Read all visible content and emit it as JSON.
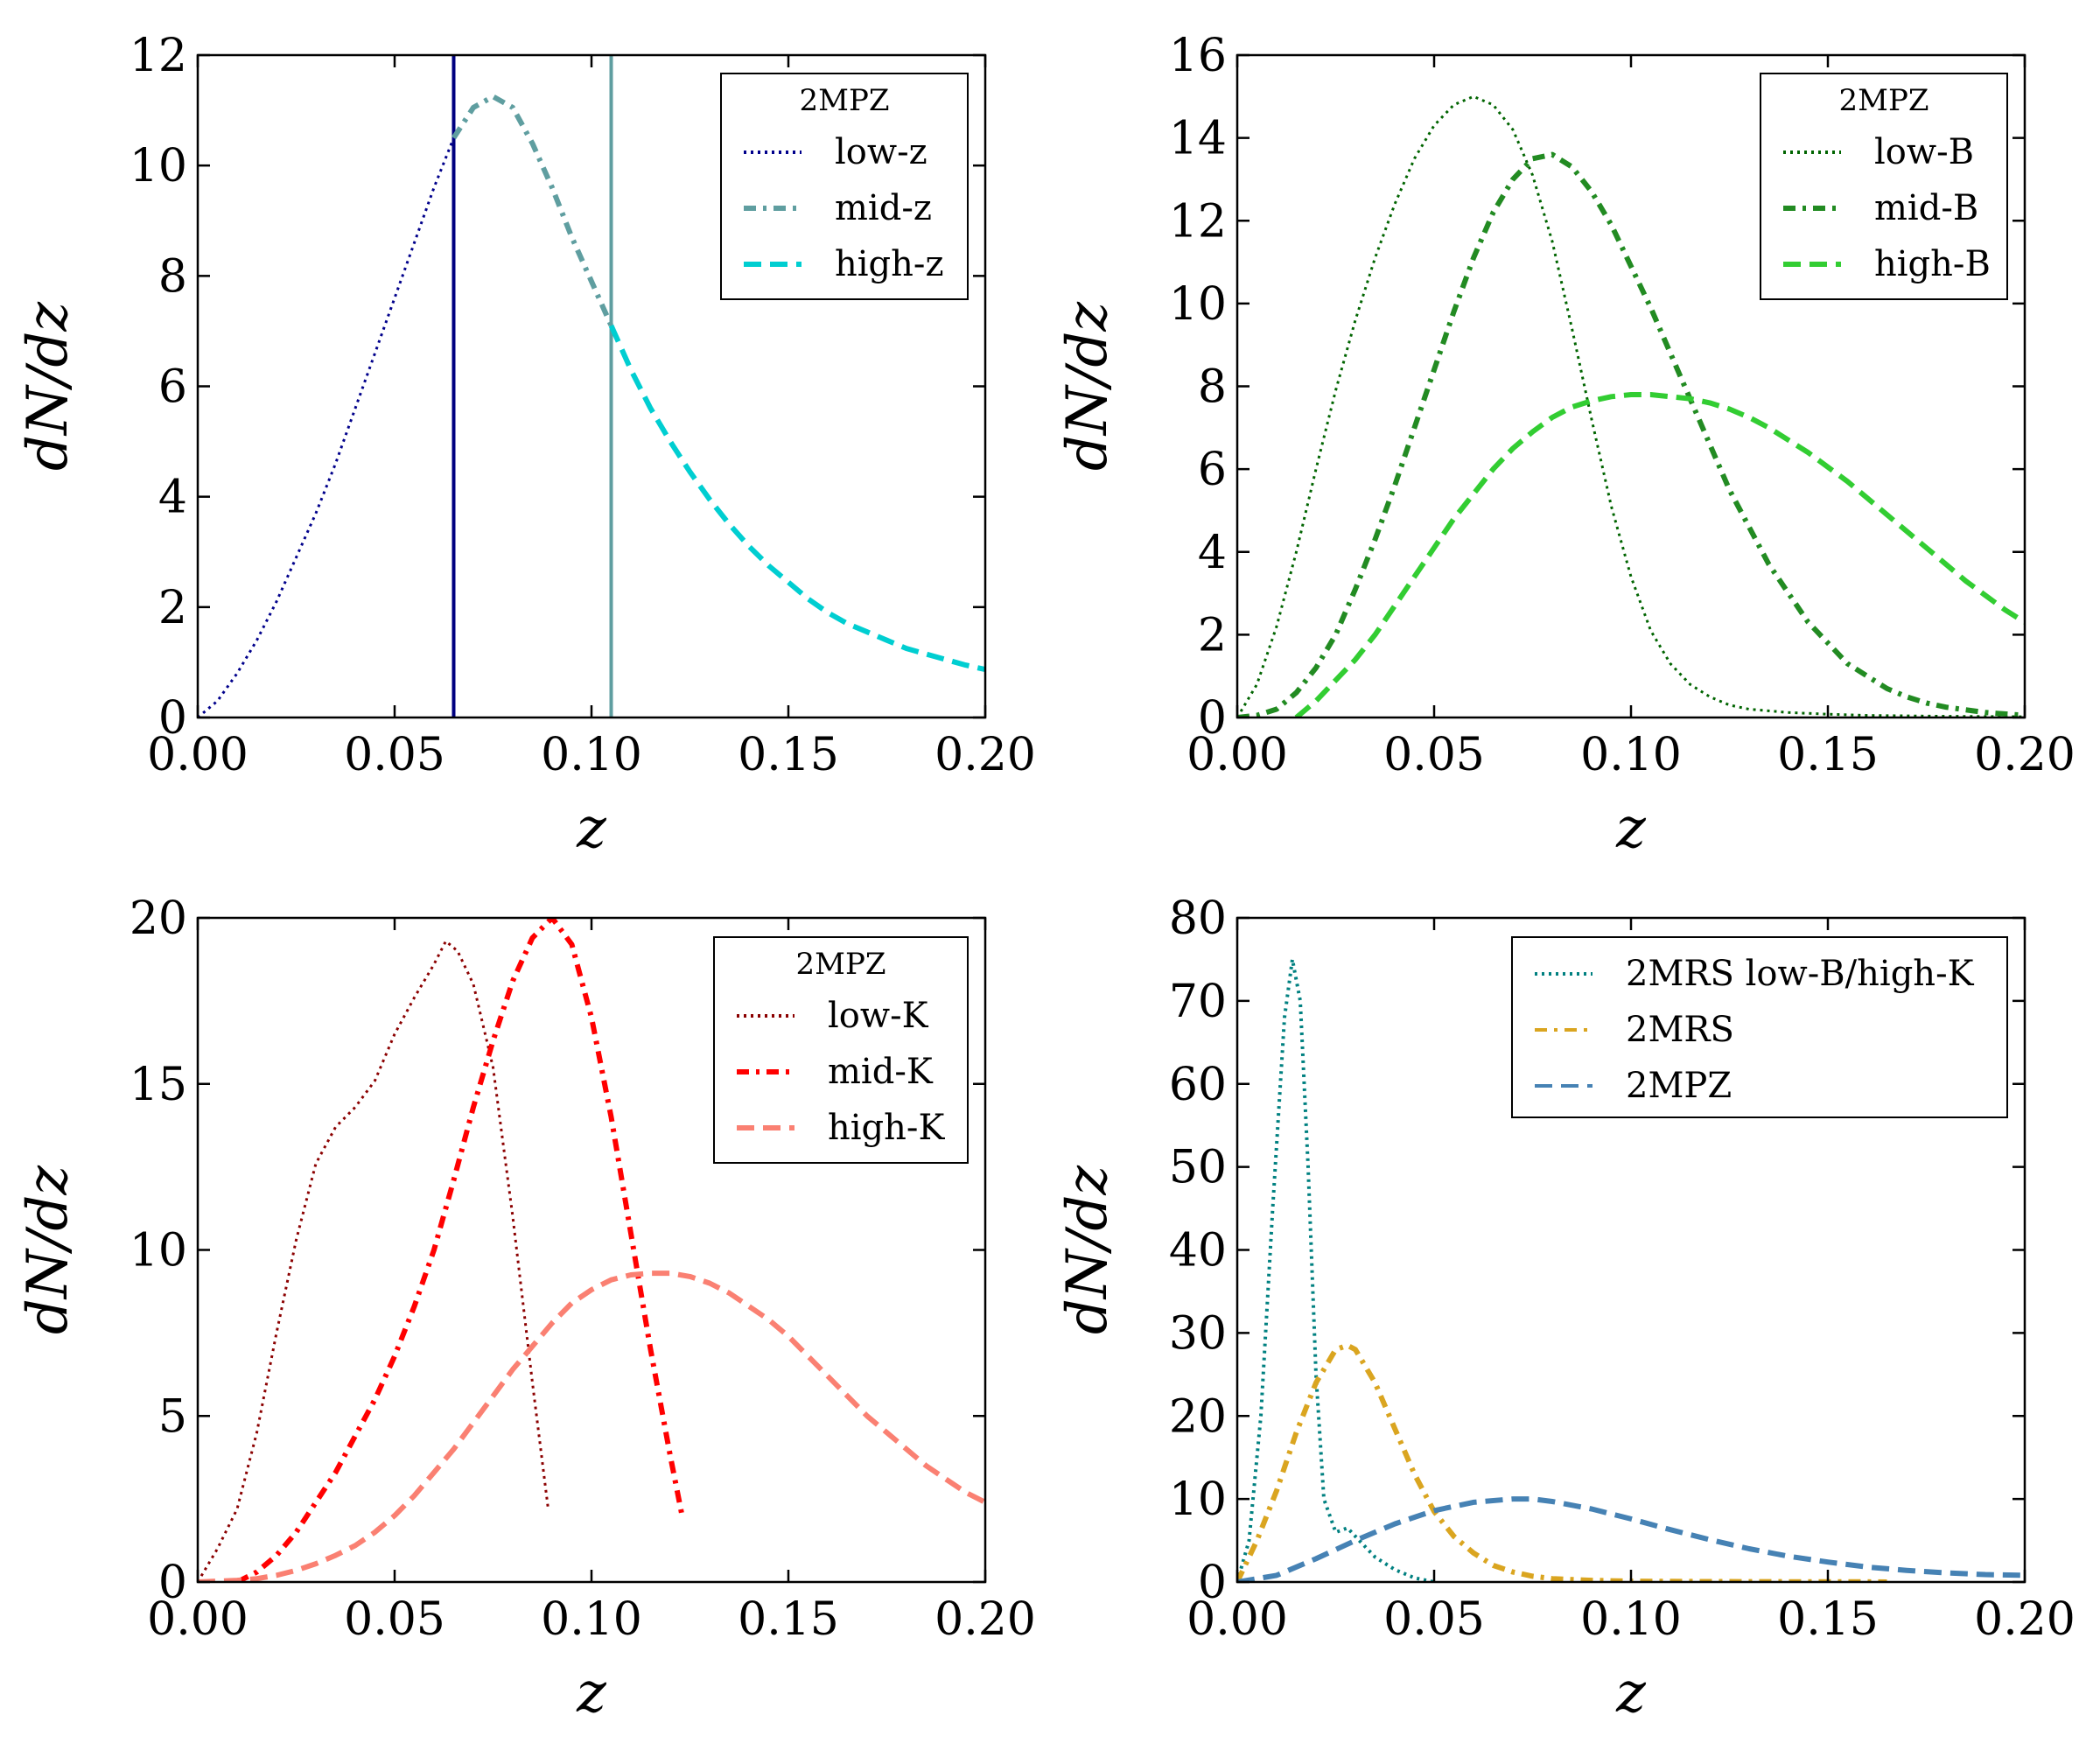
{
  "chart_data": [
    {
      "type": "line",
      "panel": "top-left",
      "xlabel": "z",
      "ylabel": "dN/dz",
      "xlim": [
        0,
        0.2
      ],
      "ylim": [
        0,
        12
      ],
      "xticks": [
        0,
        0.05,
        0.1,
        0.15,
        0.2
      ],
      "xtick_labels": [
        "0.00",
        "0.05",
        "0.10",
        "0.15",
        "0.20"
      ],
      "yticks": [
        0,
        2,
        4,
        6,
        8,
        10,
        12
      ],
      "ytick_labels": [
        "0",
        "2",
        "4",
        "6",
        "8",
        "10",
        "12"
      ],
      "legend_title": "2MPZ",
      "legend_loc": "upper right",
      "vlines": [
        {
          "x": 0.065,
          "color": "#000080"
        },
        {
          "x": 0.105,
          "color": "#5f9ea0"
        }
      ],
      "series": [
        {
          "name": "low-z",
          "color": "#00008b",
          "dash": "dotted",
          "width": 3,
          "x": [
            0.0,
            0.005,
            0.01,
            0.015,
            0.02,
            0.025,
            0.03,
            0.035,
            0.04,
            0.045,
            0.05,
            0.055,
            0.06,
            0.065
          ],
          "y": [
            0.0,
            0.3,
            0.8,
            1.4,
            2.1,
            2.9,
            3.7,
            4.6,
            5.6,
            6.6,
            7.6,
            8.6,
            9.6,
            10.5
          ]
        },
        {
          "name": "mid-z",
          "color": "#5f9ea0",
          "dash": "dashdot",
          "width": 6,
          "x": [
            0.065,
            0.07,
            0.075,
            0.08,
            0.085,
            0.09,
            0.095,
            0.1,
            0.105
          ],
          "y": [
            10.5,
            11.05,
            11.25,
            11.05,
            10.4,
            9.6,
            8.7,
            7.9,
            7.1
          ]
        },
        {
          "name": "high-z",
          "color": "#00ced1",
          "dash": "dashed",
          "width": 6,
          "x": [
            0.105,
            0.11,
            0.115,
            0.12,
            0.125,
            0.13,
            0.135,
            0.14,
            0.145,
            0.15,
            0.155,
            0.16,
            0.165,
            0.17,
            0.175,
            0.18,
            0.185,
            0.19,
            0.195,
            0.2
          ],
          "y": [
            7.1,
            6.3,
            5.6,
            5.0,
            4.45,
            3.95,
            3.5,
            3.1,
            2.75,
            2.45,
            2.15,
            1.9,
            1.7,
            1.55,
            1.4,
            1.25,
            1.15,
            1.05,
            0.95,
            0.87
          ]
        }
      ]
    },
    {
      "type": "line",
      "panel": "top-right",
      "xlabel": "z",
      "ylabel": "dN/dz",
      "xlim": [
        0,
        0.2
      ],
      "ylim": [
        0,
        16
      ],
      "xticks": [
        0,
        0.05,
        0.1,
        0.15,
        0.2
      ],
      "xtick_labels": [
        "0.00",
        "0.05",
        "0.10",
        "0.15",
        "0.20"
      ],
      "yticks": [
        0,
        2,
        4,
        6,
        8,
        10,
        12,
        14,
        16
      ],
      "ytick_labels": [
        "0",
        "2",
        "4",
        "6",
        "8",
        "10",
        "12",
        "14",
        "16"
      ],
      "legend_title": "2MPZ",
      "legend_loc": "upper right",
      "series": [
        {
          "name": "low-B",
          "color": "#006400",
          "dash": "dotted",
          "width": 3,
          "x": [
            0.0,
            0.005,
            0.01,
            0.015,
            0.02,
            0.025,
            0.03,
            0.035,
            0.04,
            0.045,
            0.05,
            0.055,
            0.06,
            0.065,
            0.07,
            0.075,
            0.08,
            0.085,
            0.09,
            0.095,
            0.1,
            0.105,
            0.11,
            0.115,
            0.12,
            0.125,
            0.13,
            0.14,
            0.15,
            0.16,
            0.18,
            0.2
          ],
          "y": [
            0.0,
            0.8,
            2.2,
            4.0,
            6.0,
            7.9,
            9.6,
            11.1,
            12.4,
            13.5,
            14.3,
            14.8,
            15.0,
            14.8,
            14.2,
            13.1,
            11.5,
            9.4,
            7.2,
            5.1,
            3.4,
            2.1,
            1.3,
            0.8,
            0.5,
            0.3,
            0.2,
            0.12,
            0.08,
            0.05,
            0.03,
            0.02
          ]
        },
        {
          "name": "mid-B",
          "color": "#228b22",
          "dash": "dashdot",
          "width": 6,
          "x": [
            0.0,
            0.005,
            0.01,
            0.015,
            0.02,
            0.025,
            0.03,
            0.035,
            0.04,
            0.045,
            0.05,
            0.055,
            0.06,
            0.065,
            0.07,
            0.075,
            0.08,
            0.085,
            0.09,
            0.095,
            0.1,
            0.105,
            0.11,
            0.115,
            0.12,
            0.125,
            0.13,
            0.135,
            0.14,
            0.145,
            0.15,
            0.155,
            0.16,
            0.165,
            0.17,
            0.175,
            0.18,
            0.19,
            0.2
          ],
          "y": [
            0.0,
            0.05,
            0.2,
            0.6,
            1.2,
            2.0,
            3.1,
            4.3,
            5.6,
            7.0,
            8.4,
            9.8,
            11.1,
            12.2,
            13.0,
            13.5,
            13.6,
            13.3,
            12.7,
            11.9,
            10.9,
            9.9,
            8.8,
            7.7,
            6.6,
            5.5,
            4.6,
            3.7,
            3.0,
            2.3,
            1.8,
            1.3,
            1.0,
            0.7,
            0.5,
            0.35,
            0.25,
            0.12,
            0.05
          ]
        },
        {
          "name": "high-B",
          "color": "#32cd32",
          "dash": "dashed",
          "width": 6,
          "x": [
            0.015,
            0.02,
            0.025,
            0.03,
            0.035,
            0.04,
            0.045,
            0.05,
            0.055,
            0.06,
            0.065,
            0.07,
            0.075,
            0.08,
            0.085,
            0.09,
            0.095,
            0.1,
            0.105,
            0.11,
            0.115,
            0.12,
            0.125,
            0.13,
            0.135,
            0.14,
            0.145,
            0.15,
            0.155,
            0.16,
            0.165,
            0.17,
            0.175,
            0.18,
            0.185,
            0.19,
            0.195,
            0.2
          ],
          "y": [
            0.0,
            0.4,
            0.9,
            1.4,
            2.0,
            2.7,
            3.4,
            4.1,
            4.8,
            5.4,
            6.0,
            6.5,
            6.9,
            7.25,
            7.5,
            7.65,
            7.75,
            7.8,
            7.8,
            7.75,
            7.7,
            7.6,
            7.45,
            7.25,
            7.0,
            6.7,
            6.4,
            6.05,
            5.7,
            5.3,
            4.9,
            4.5,
            4.1,
            3.7,
            3.3,
            2.95,
            2.6,
            2.3
          ]
        }
      ]
    },
    {
      "type": "line",
      "panel": "bottom-left",
      "xlabel": "z",
      "ylabel": "dN/dz",
      "xlim": [
        0,
        0.2
      ],
      "ylim": [
        0,
        20
      ],
      "xticks": [
        0,
        0.05,
        0.1,
        0.15,
        0.2
      ],
      "xtick_labels": [
        "0.00",
        "0.05",
        "0.10",
        "0.15",
        "0.20"
      ],
      "yticks": [
        0,
        5,
        10,
        15,
        20
      ],
      "ytick_labels": [
        "0",
        "5",
        "10",
        "15",
        "20"
      ],
      "legend_title": "2MPZ",
      "legend_loc": "upper right",
      "series": [
        {
          "name": "low-K",
          "color": "#8b0000",
          "dash": "dotted",
          "width": 3,
          "x": [
            0.0,
            0.005,
            0.01,
            0.015,
            0.02,
            0.025,
            0.03,
            0.035,
            0.04,
            0.045,
            0.05,
            0.055,
            0.06,
            0.063,
            0.066,
            0.07,
            0.075,
            0.08,
            0.085,
            0.089
          ],
          "y": [
            0.0,
            1.0,
            2.2,
            4.5,
            7.5,
            10.3,
            12.6,
            13.7,
            14.3,
            15.1,
            16.5,
            17.6,
            18.6,
            19.3,
            19.0,
            18.0,
            15.5,
            11.0,
            6.0,
            2.2
          ]
        },
        {
          "name": "mid-K",
          "color": "#ff0000",
          "dash": "dashdot",
          "width": 6,
          "x": [
            0.01,
            0.015,
            0.02,
            0.025,
            0.03,
            0.035,
            0.04,
            0.045,
            0.05,
            0.055,
            0.06,
            0.065,
            0.07,
            0.075,
            0.08,
            0.085,
            0.09,
            0.095,
            0.1,
            0.105,
            0.11,
            0.115,
            0.12,
            0.123
          ],
          "y": [
            0.0,
            0.3,
            0.8,
            1.5,
            2.4,
            3.3,
            4.4,
            5.5,
            6.8,
            8.3,
            10.0,
            12.1,
            14.3,
            16.3,
            18.1,
            19.4,
            20.0,
            19.2,
            17.0,
            14.0,
            10.5,
            7.0,
            3.8,
            2.0
          ]
        },
        {
          "name": "high-K",
          "color": "#fa8072",
          "dash": "dashed",
          "width": 6,
          "x": [
            0.0,
            0.01,
            0.015,
            0.02,
            0.025,
            0.03,
            0.035,
            0.04,
            0.045,
            0.05,
            0.055,
            0.06,
            0.065,
            0.07,
            0.075,
            0.08,
            0.085,
            0.09,
            0.095,
            0.1,
            0.105,
            0.11,
            0.115,
            0.12,
            0.125,
            0.13,
            0.135,
            0.14,
            0.145,
            0.15,
            0.155,
            0.16,
            0.165,
            0.17,
            0.175,
            0.18,
            0.185,
            0.19,
            0.195,
            0.2
          ],
          "y": [
            0.0,
            0.05,
            0.1,
            0.2,
            0.35,
            0.55,
            0.8,
            1.1,
            1.5,
            2.0,
            2.6,
            3.3,
            4.0,
            4.8,
            5.6,
            6.4,
            7.1,
            7.8,
            8.4,
            8.8,
            9.1,
            9.25,
            9.3,
            9.3,
            9.2,
            9.0,
            8.7,
            8.3,
            7.9,
            7.4,
            6.8,
            6.2,
            5.6,
            5.0,
            4.5,
            4.0,
            3.5,
            3.1,
            2.7,
            2.4
          ]
        }
      ]
    },
    {
      "type": "line",
      "panel": "bottom-right",
      "xlabel": "z",
      "ylabel": "dN/dz",
      "xlim": [
        0,
        0.2
      ],
      "ylim": [
        0,
        80
      ],
      "xticks": [
        0,
        0.05,
        0.1,
        0.15,
        0.2
      ],
      "xtick_labels": [
        "0.00",
        "0.05",
        "0.10",
        "0.15",
        "0.20"
      ],
      "yticks": [
        0,
        10,
        20,
        30,
        40,
        50,
        60,
        70,
        80
      ],
      "ytick_labels": [
        "0",
        "10",
        "20",
        "30",
        "40",
        "50",
        "60",
        "70",
        "80"
      ],
      "legend_title": "",
      "legend_loc": "upper right",
      "series": [
        {
          "name": "2MRS low-B/high-K",
          "color": "#008080",
          "dash": "dotted",
          "width": 4,
          "x": [
            0.0,
            0.003,
            0.006,
            0.009,
            0.012,
            0.014,
            0.016,
            0.018,
            0.02,
            0.022,
            0.025,
            0.028,
            0.031,
            0.035,
            0.04,
            0.045,
            0.05
          ],
          "y": [
            0.0,
            5.0,
            20.0,
            45.0,
            68.0,
            75.0,
            70.0,
            50.0,
            25.0,
            10.0,
            6.0,
            6.5,
            5.0,
            3.0,
            1.5,
            0.5,
            0.0
          ]
        },
        {
          "name": "2MRS",
          "color": "#daa520",
          "dash": "dashdot",
          "width": 6,
          "x": [
            0.0,
            0.005,
            0.01,
            0.015,
            0.02,
            0.025,
            0.028,
            0.03,
            0.035,
            0.04,
            0.045,
            0.05,
            0.055,
            0.06,
            0.065,
            0.07,
            0.075,
            0.08,
            0.09,
            0.1,
            0.12,
            0.14,
            0.16,
            0.165
          ],
          "y": [
            0.0,
            5.0,
            11.0,
            18.0,
            24.0,
            28.0,
            28.5,
            28.0,
            24.0,
            18.5,
            13.0,
            8.5,
            5.5,
            3.5,
            2.0,
            1.2,
            0.7,
            0.4,
            0.2,
            0.1,
            0.05,
            0.03,
            0.02,
            0.0
          ]
        },
        {
          "name": "2MPZ",
          "color": "#4682b4",
          "dash": "dashed",
          "width": 6,
          "x": [
            0.0,
            0.01,
            0.02,
            0.03,
            0.04,
            0.05,
            0.06,
            0.07,
            0.075,
            0.08,
            0.09,
            0.1,
            0.11,
            0.12,
            0.13,
            0.14,
            0.15,
            0.16,
            0.17,
            0.18,
            0.19,
            0.2
          ],
          "y": [
            0.0,
            0.8,
            2.8,
            5.0,
            7.0,
            8.6,
            9.6,
            10.0,
            10.0,
            9.7,
            8.8,
            7.6,
            6.3,
            5.1,
            4.0,
            3.1,
            2.4,
            1.8,
            1.4,
            1.1,
            0.9,
            0.8
          ]
        }
      ]
    }
  ]
}
